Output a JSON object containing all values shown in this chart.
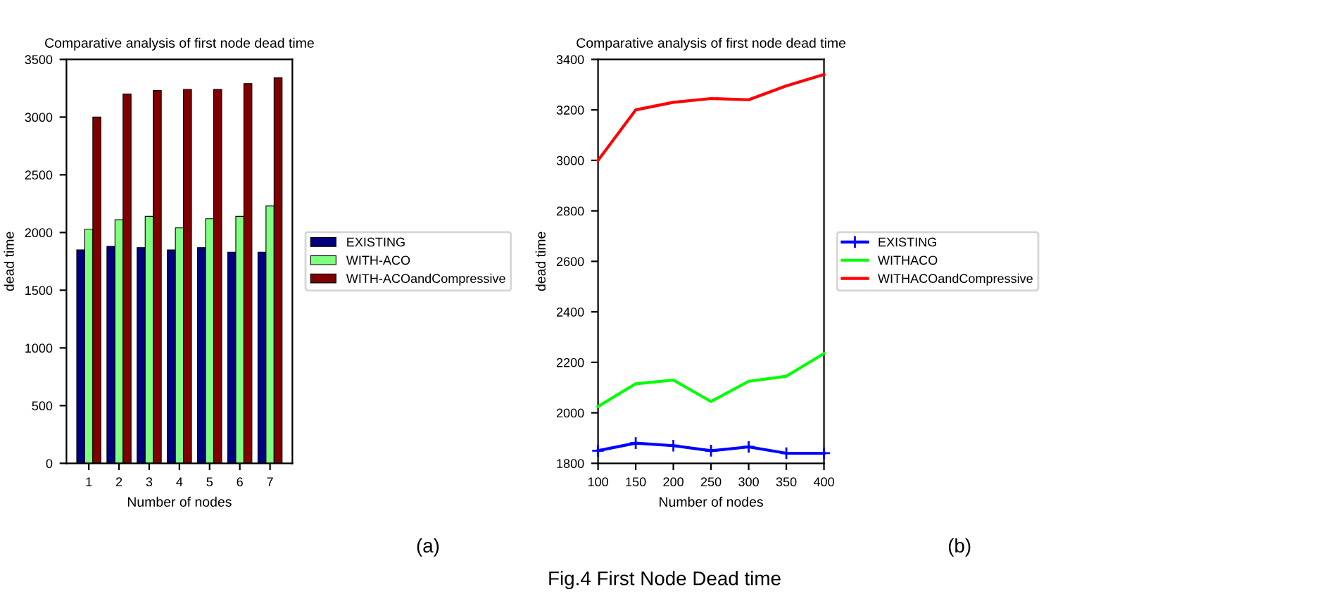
{
  "chart_data": [
    {
      "type": "bar",
      "title": "Comparative analysis of first node dead time",
      "xlabel": "Number of nodes",
      "ylabel": "dead time",
      "categories": [
        "1",
        "2",
        "3",
        "4",
        "5",
        "6",
        "7"
      ],
      "series": [
        {
          "name": "EXISTING",
          "color": "#00007f",
          "values": [
            1850,
            1880,
            1870,
            1850,
            1870,
            1830,
            1830
          ]
        },
        {
          "name": "WITH-ACO",
          "color": "#7fff7f",
          "values": [
            2030,
            2110,
            2140,
            2040,
            2120,
            2140,
            2230
          ]
        },
        {
          "name": "WITH-ACOandCompressive",
          "color": "#7f0000",
          "values": [
            3000,
            3200,
            3230,
            3240,
            3240,
            3290,
            3340
          ]
        }
      ],
      "ylim": [
        0,
        3500
      ],
      "yticks": [
        0,
        500,
        1000,
        1500,
        2000,
        2500,
        3000,
        3500
      ],
      "grid": false,
      "legend": "right",
      "annotations": [
        "(a)"
      ]
    },
    {
      "type": "line",
      "title": "Comparative analysis of first node dead time",
      "xlabel": "Number of nodes",
      "ylabel": "dead time",
      "x": [
        100,
        150,
        200,
        250,
        300,
        350,
        400
      ],
      "series": [
        {
          "name": "EXISTING",
          "color": "#0000ff",
          "marker": "cross",
          "values": [
            1850,
            1880,
            1870,
            1850,
            1865,
            1840,
            1840
          ]
        },
        {
          "name": "WITHACO",
          "color": "#00ff00",
          "values": [
            2025,
            2115,
            2130,
            2045,
            2125,
            2145,
            2235
          ]
        },
        {
          "name": "WITHACOandCompressive",
          "color": "#ff0000",
          "values": [
            3000,
            3200,
            3230,
            3245,
            3240,
            3295,
            3340
          ]
        }
      ],
      "xlim": [
        100,
        400
      ],
      "xticks": [
        100,
        150,
        200,
        250,
        300,
        350,
        400
      ],
      "ylim": [
        1800,
        3400
      ],
      "yticks": [
        1800,
        2000,
        2200,
        2400,
        2600,
        2800,
        3000,
        3200,
        3400
      ],
      "grid": false,
      "legend": "right",
      "line_style": "solid",
      "annotations": [
        "(b)",
        "Fig.4 First Node Dead time"
      ]
    }
  ]
}
